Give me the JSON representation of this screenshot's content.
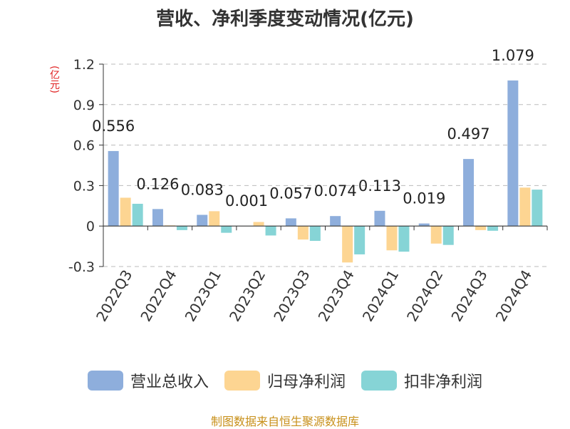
{
  "title": "营收、净利季度变动情况(亿元)",
  "unit_label": "(亿元)",
  "source": "制图数据来自恒生聚源数据库",
  "colors": {
    "revenue": "#8eaedc",
    "net_profit": "#fdd592",
    "deducted_profit": "#86d4d6"
  },
  "chart_data": {
    "type": "bar",
    "categories": [
      "2022Q3",
      "2022Q4",
      "2023Q1",
      "2023Q2",
      "2023Q3",
      "2023Q4",
      "2024Q1",
      "2024Q2",
      "2024Q3",
      "2024Q4"
    ],
    "series": [
      {
        "name": "营业总收入",
        "values": [
          0.556,
          0.126,
          0.083,
          0.001,
          0.057,
          0.074,
          0.113,
          0.019,
          0.497,
          1.079
        ]
      },
      {
        "name": "归母净利润",
        "values": [
          0.21,
          0.005,
          0.11,
          0.03,
          -0.1,
          -0.27,
          -0.18,
          -0.13,
          -0.03,
          0.285
        ]
      },
      {
        "name": "扣非净利润",
        "values": [
          0.165,
          -0.03,
          -0.05,
          -0.07,
          -0.11,
          -0.21,
          -0.19,
          -0.14,
          -0.035,
          0.27
        ]
      }
    ],
    "data_labels": [
      "0.556",
      "0.126",
      "0.083",
      "0.001",
      "0.057",
      "0.074",
      "0.113",
      "0.019",
      "0.497",
      "1.079"
    ],
    "yticks": [
      "1.2",
      "0.9",
      "0.6",
      "0.3",
      "0",
      "-0.3"
    ],
    "ylim": [
      -0.3,
      1.2
    ],
    "grid": true,
    "legend_position": "bottom"
  }
}
